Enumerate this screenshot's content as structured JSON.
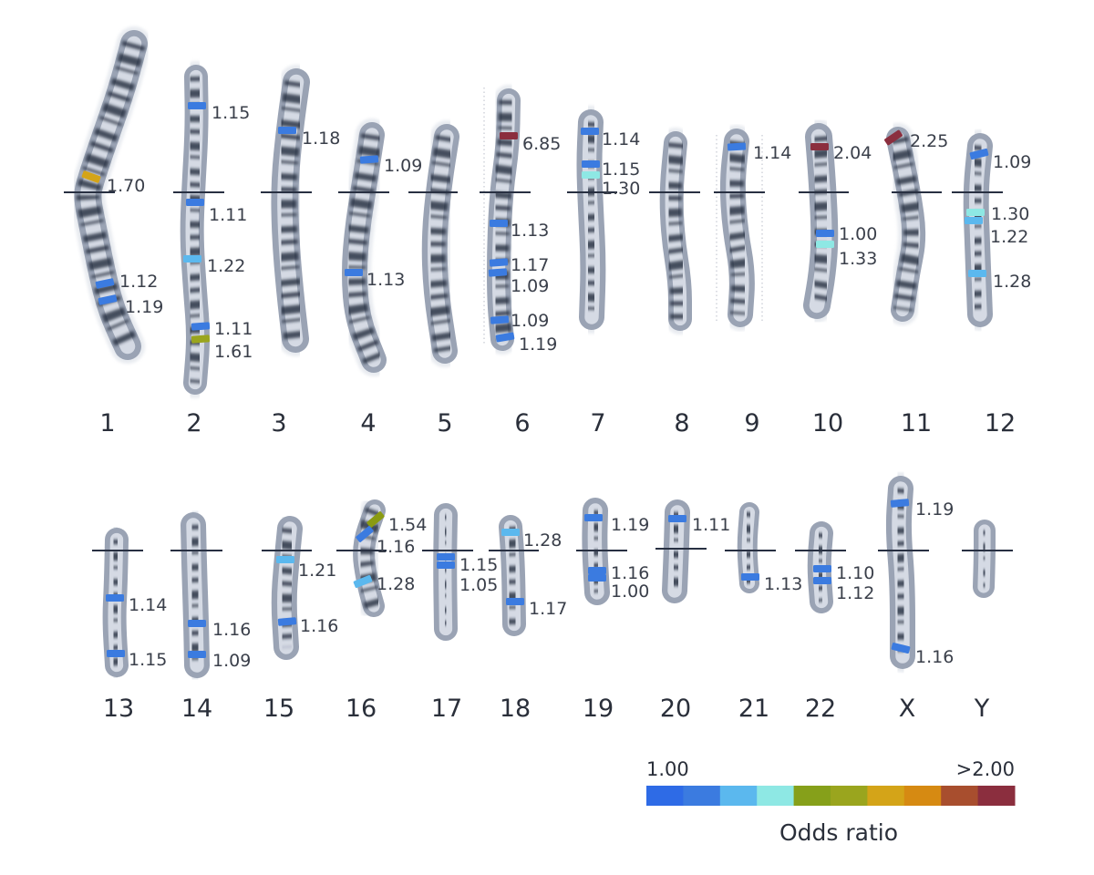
{
  "chromosomes": [
    {
      "name": "1",
      "markers": [
        {
          "or": "1.70",
          "color": "#D4A418"
        },
        {
          "or": "1.12",
          "color": "#3B7BE0"
        },
        {
          "or": "1.19",
          "color": "#3B7BE0"
        }
      ]
    },
    {
      "name": "2",
      "markers": [
        {
          "or": "1.15",
          "color": "#3B7BE0"
        },
        {
          "or": "1.11",
          "color": "#3B7BE0"
        },
        {
          "or": "1.22",
          "color": "#5BB8EE"
        },
        {
          "or": "1.11",
          "color": "#3B7BE0"
        },
        {
          "or": "1.61",
          "color": "#9AA51E"
        }
      ]
    },
    {
      "name": "3",
      "markers": [
        {
          "or": "1.18",
          "color": "#3B7BE0"
        }
      ]
    },
    {
      "name": "4",
      "markers": [
        {
          "or": "1.09",
          "color": "#3B7BE0"
        },
        {
          "or": "1.13",
          "color": "#3B7BE0"
        }
      ]
    },
    {
      "name": "5",
      "markers": []
    },
    {
      "name": "6",
      "markers": [
        {
          "or": "6.85",
          "color": "#8B2E3E"
        },
        {
          "or": "1.13",
          "color": "#3B7BE0"
        },
        {
          "or": "1.17",
          "color": "#3B7BE0"
        },
        {
          "or": "1.09",
          "color": "#3B7BE0"
        },
        {
          "or": "1.09",
          "color": "#3B7BE0"
        },
        {
          "or": "1.19",
          "color": "#3B7BE0"
        }
      ]
    },
    {
      "name": "7",
      "markers": [
        {
          "or": "1.14",
          "color": "#3B7BE0"
        },
        {
          "or": "1.15",
          "color": "#3B7BE0"
        },
        {
          "or": "1.30",
          "color": "#8EE8E4"
        }
      ]
    },
    {
      "name": "8",
      "markers": []
    },
    {
      "name": "9",
      "markers": [
        {
          "or": "1.14",
          "color": "#3B7BE0"
        }
      ]
    },
    {
      "name": "10",
      "markers": [
        {
          "or": "2.04",
          "color": "#8B2E3E"
        },
        {
          "or": "1.00",
          "color": "#3B7BE0"
        },
        {
          "or": "1.33",
          "color": "#8EE8E4"
        }
      ]
    },
    {
      "name": "11",
      "markers": [
        {
          "or": "2.25",
          "color": "#8B2E3E"
        }
      ]
    },
    {
      "name": "12",
      "markers": [
        {
          "or": "1.09",
          "color": "#3B7BE0"
        },
        {
          "or": "1.30",
          "color": "#8EE8E4"
        },
        {
          "or": "1.22",
          "color": "#5BB8EE"
        },
        {
          "or": "1.28",
          "color": "#5BB8EE"
        }
      ]
    },
    {
      "name": "13",
      "markers": [
        {
          "or": "1.14",
          "color": "#3B7BE0"
        },
        {
          "or": "1.15",
          "color": "#3B7BE0"
        }
      ]
    },
    {
      "name": "14",
      "markers": [
        {
          "or": "1.16",
          "color": "#3B7BE0"
        },
        {
          "or": "1.09",
          "color": "#3B7BE0"
        }
      ]
    },
    {
      "name": "15",
      "markers": [
        {
          "or": "1.21",
          "color": "#5BB8EE"
        },
        {
          "or": "1.16",
          "color": "#3B7BE0"
        }
      ]
    },
    {
      "name": "16",
      "markers": [
        {
          "or": "1.54",
          "color": "#8A9B12"
        },
        {
          "or": "1.16",
          "color": "#3B7BE0"
        },
        {
          "or": "1.28",
          "color": "#5BB8EE"
        }
      ]
    },
    {
      "name": "17",
      "markers": [
        {
          "or": "1.15",
          "color": "#3B7BE0"
        },
        {
          "or": "1.05",
          "color": "#3B7BE0"
        }
      ]
    },
    {
      "name": "18",
      "markers": [
        {
          "or": "1.28",
          "color": "#5BB8EE"
        },
        {
          "or": "1.17",
          "color": "#3B7BE0"
        }
      ]
    },
    {
      "name": "19",
      "markers": [
        {
          "or": "1.19",
          "color": "#3B7BE0"
        },
        {
          "or": "1.16",
          "color": "#3B7BE0"
        },
        {
          "or": "1.00",
          "color": "#3B7BE0"
        }
      ]
    },
    {
      "name": "20",
      "markers": [
        {
          "or": "1.11",
          "color": "#3B7BE0"
        }
      ]
    },
    {
      "name": "21",
      "markers": [
        {
          "or": "1.13",
          "color": "#3B7BE0"
        }
      ]
    },
    {
      "name": "22",
      "markers": [
        {
          "or": "1.10",
          "color": "#3B7BE0"
        },
        {
          "or": "1.12",
          "color": "#3B7BE0"
        }
      ]
    },
    {
      "name": "X",
      "markers": [
        {
          "or": "1.19",
          "color": "#3B7BE0"
        },
        {
          "or": "1.16",
          "color": "#3B7BE0"
        }
      ]
    },
    {
      "name": "Y",
      "markers": []
    }
  ],
  "legend": {
    "min_label": "1.00",
    "max_label": ">2.00",
    "title": "Odds ratio",
    "colors": [
      "#2E6BE6",
      "#3B7BE0",
      "#5BB8EE",
      "#8EE8E4",
      "#86A01A",
      "#9AA51E",
      "#D4A418",
      "#D68A12",
      "#A84E2E",
      "#8B2E3E"
    ]
  }
}
